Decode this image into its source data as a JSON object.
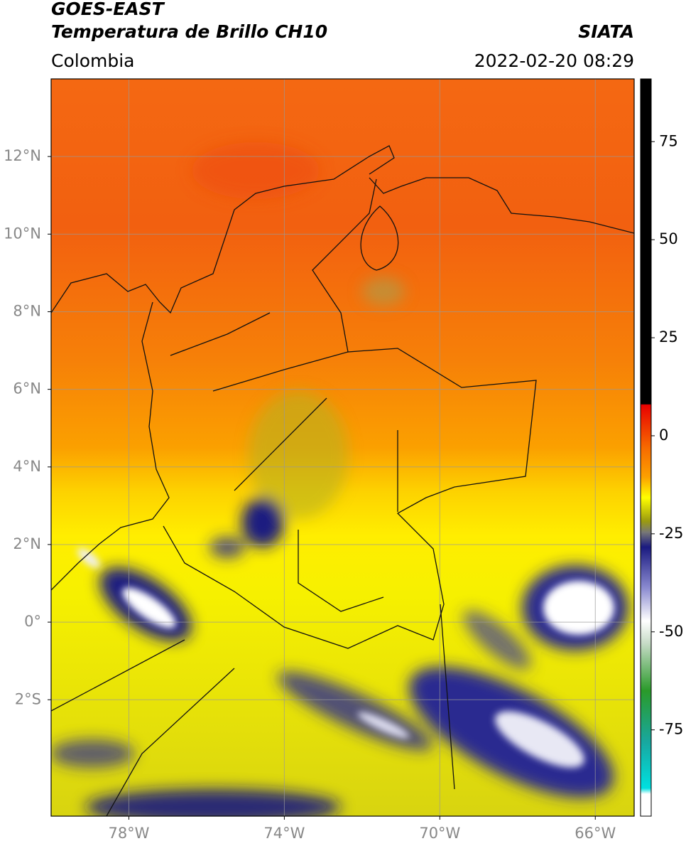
{
  "header": {
    "title": "GOES-EAST",
    "subtitle": "Temperatura de Brillo CH10",
    "credit": "SIATA",
    "region": "Colombia",
    "timestamp": "2022-02-20 08:29"
  },
  "map": {
    "xlim": [
      -80,
      -65
    ],
    "ylim": [
      -5,
      14
    ],
    "xticks": [
      {
        "value": -78,
        "label": "78°W"
      },
      {
        "value": -74,
        "label": "74°W"
      },
      {
        "value": -70,
        "label": "70°W"
      },
      {
        "value": -66,
        "label": "66°W"
      }
    ],
    "yticks": [
      {
        "value": 12,
        "label": "12°N"
      },
      {
        "value": 10,
        "label": "10°N"
      },
      {
        "value": 8,
        "label": "8°N"
      },
      {
        "value": 6,
        "label": "6°N"
      },
      {
        "value": 4,
        "label": "4°N"
      },
      {
        "value": 2,
        "label": "2°N"
      },
      {
        "value": 0,
        "label": "0°"
      },
      {
        "value": -2,
        "label": "2°S"
      }
    ],
    "grid": true
  },
  "colorbar": {
    "lim": [
      -97,
      91
    ],
    "ticks": [
      75,
      50,
      25,
      0,
      -25,
      -50,
      -75
    ]
  }
}
